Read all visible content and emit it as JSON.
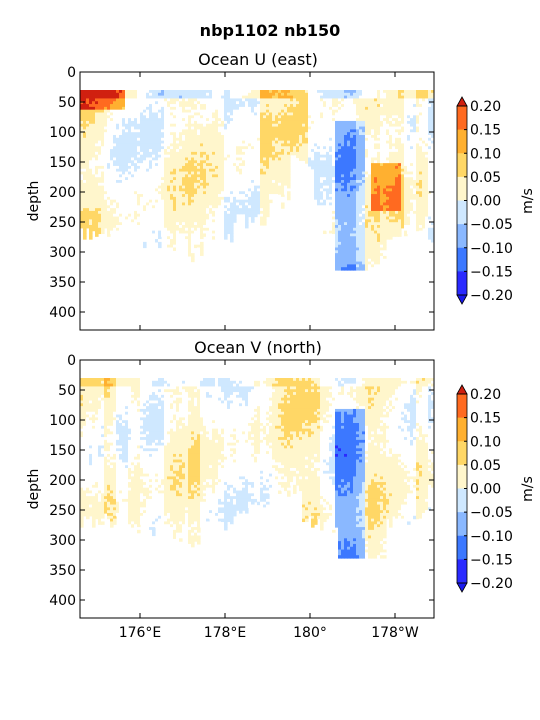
{
  "figure": {
    "title": "nbp1102 nb150"
  },
  "chart_data": [
    {
      "type": "heatmap",
      "title": "Ocean U (east)",
      "ylabel": "depth",
      "yticks": [
        "0",
        "50",
        "100",
        "150",
        "200",
        "250",
        "300",
        "350",
        "400"
      ],
      "ylim": [
        430,
        0
      ],
      "xticks": [],
      "colorbar": {
        "label": "m/s",
        "ticks": [
          "0.20",
          "0.15",
          "0.10",
          "0.05",
          "0.00",
          "−0.05",
          "−0.10",
          "−0.15",
          "−0.20"
        ],
        "extend": "both"
      }
    },
    {
      "type": "heatmap",
      "title": "Ocean V (north)",
      "ylabel": "depth",
      "yticks": [
        "0",
        "50",
        "100",
        "150",
        "200",
        "250",
        "300",
        "350",
        "400"
      ],
      "ylim": [
        430,
        0
      ],
      "xticks": [
        "176°E",
        "178°E",
        "180°",
        "178°W"
      ],
      "colorbar": {
        "label": "m/s",
        "ticks": [
          "0.20",
          "0.15",
          "0.10",
          "0.05",
          "0.00",
          "−0.05",
          "−0.10",
          "−0.15",
          "−0.20"
        ],
        "extend": "both"
      }
    }
  ],
  "colors": {
    "levels": [
      "#2a2aff",
      "#3c78ff",
      "#8ab8ff",
      "#cfe8ff",
      "#ffffff",
      "#fff6cc",
      "#ffd766",
      "#ffb030",
      "#ff6a20",
      "#d02010"
    ],
    "land_gap": "#ffffff"
  }
}
